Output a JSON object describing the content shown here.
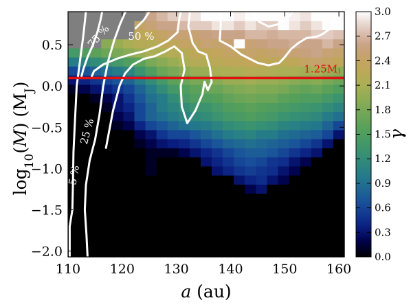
{
  "chart_data": {
    "type": "heatmap",
    "title": "",
    "xlabel": "a (au)",
    "ylabel": "log10(M) (MJ)",
    "xlim": [
      110,
      161
    ],
    "ylim": [
      -2.07,
      0.9
    ],
    "xticks": [
      110,
      120,
      130,
      140,
      150,
      160
    ],
    "yticks": [
      -2.0,
      -1.5,
      -1.0,
      -0.5,
      0.0,
      0.5
    ],
    "ytick_labels": [
      "−2.0",
      "−1.5",
      "−1.0",
      "−0.5",
      "0.0",
      "0.5"
    ],
    "colorbar": {
      "label": "γ",
      "range": [
        0.0,
        3.0
      ],
      "ticks": [
        0.0,
        0.3,
        0.6,
        0.9,
        1.2,
        1.5,
        1.8,
        2.1,
        2.4,
        2.7,
        3.0
      ],
      "colormap": "gist_earth"
    },
    "grid": {
      "x_start": 110,
      "x_step": 2.04,
      "n_cols": 25,
      "y_start": -2.07,
      "y_step": 0.11,
      "n_rows": 27,
      "row_order": "bottom_to_top",
      "no_data_value": null,
      "values": [
        [
          0,
          0,
          0,
          0,
          0,
          0,
          0,
          0,
          0,
          0,
          0,
          0,
          0,
          0,
          0,
          0,
          0,
          0,
          0,
          0,
          0,
          0,
          0,
          0,
          0
        ],
        [
          0,
          0,
          0,
          0,
          0,
          0,
          0,
          0,
          0,
          0,
          0,
          0,
          0,
          0,
          0,
          0,
          0,
          0,
          0,
          0,
          0,
          0,
          0,
          0,
          0
        ],
        [
          0,
          0,
          0,
          0,
          0,
          0,
          0,
          0,
          0,
          0,
          0,
          0,
          0,
          0,
          0,
          0,
          0,
          0,
          0,
          0,
          0,
          0,
          0,
          0,
          0
        ],
        [
          0,
          0,
          0,
          0,
          0,
          0,
          0,
          0,
          0,
          0,
          0,
          0,
          0,
          0,
          0,
          0,
          0,
          0,
          0,
          0,
          0,
          0,
          0,
          0,
          0
        ],
        [
          0,
          0,
          0,
          0,
          0,
          0,
          0,
          0,
          0,
          0,
          0,
          0,
          0,
          0,
          0,
          0,
          0,
          0,
          0,
          0,
          0,
          0,
          0,
          0,
          0
        ],
        [
          0,
          0,
          0,
          0,
          0,
          0,
          0,
          0,
          0,
          0,
          0,
          0,
          0,
          0,
          0,
          0,
          0,
          0,
          0,
          0,
          0,
          0,
          0,
          0,
          0
        ],
        [
          0,
          0,
          0,
          0,
          0,
          0,
          0,
          0,
          0,
          0,
          0,
          0,
          0,
          0,
          0,
          0,
          0,
          0,
          0,
          0,
          0,
          0,
          0,
          0,
          0
        ],
        [
          0,
          0,
          0,
          0,
          0,
          0,
          0,
          0,
          0,
          0,
          0,
          0,
          0,
          0,
          0,
          0,
          0.2,
          0.3,
          0,
          0,
          0,
          0,
          0,
          0,
          0
        ],
        [
          0,
          0,
          0,
          0,
          0,
          0,
          0,
          0,
          0,
          0,
          0,
          0,
          0,
          0,
          0,
          0.3,
          0.4,
          0.45,
          0.3,
          0.2,
          0,
          0,
          0,
          0,
          0
        ],
        [
          0,
          0,
          0,
          0,
          0,
          0,
          0,
          0.1,
          0,
          0,
          0,
          0,
          0,
          0.3,
          0.4,
          0.5,
          0.55,
          0.5,
          0.45,
          0.3,
          0.2,
          0,
          0,
          0,
          0
        ],
        [
          0,
          0,
          0,
          0,
          0,
          0,
          0,
          0.1,
          0,
          0,
          0,
          0,
          0.3,
          0.4,
          0.5,
          0.6,
          0.65,
          0.6,
          0.5,
          0.45,
          0.3,
          0.2,
          0,
          0,
          0
        ],
        [
          0,
          0,
          0,
          0,
          0,
          0,
          0,
          0.1,
          0.1,
          0.1,
          0.2,
          0.3,
          0.4,
          0.5,
          0.6,
          0.7,
          0.75,
          0.75,
          0.7,
          0.6,
          0.5,
          0.4,
          0.3,
          0,
          0
        ],
        [
          0,
          0,
          0,
          0,
          0,
          0,
          0.1,
          0.2,
          0.3,
          0.35,
          0.4,
          0.5,
          0.6,
          0.7,
          0.8,
          0.85,
          0.9,
          0.85,
          0.8,
          0.75,
          0.7,
          0.6,
          0.5,
          0.3,
          0
        ],
        [
          0,
          0,
          0,
          0,
          0,
          0,
          0.2,
          0.3,
          0.5,
          0.6,
          0.6,
          0.7,
          0.8,
          0.9,
          1.0,
          1.05,
          1.1,
          1.0,
          1.0,
          0.9,
          0.85,
          0.8,
          0.75,
          0.6,
          0.3
        ],
        [
          0,
          0,
          0,
          0,
          0.1,
          0.2,
          0.4,
          0.6,
          0.7,
          0.8,
          0.9,
          0.95,
          1.0,
          1.1,
          1.2,
          1.25,
          1.3,
          1.25,
          1.2,
          1.1,
          1.05,
          1.0,
          0.95,
          0.8,
          0.6
        ],
        [
          0,
          0,
          0,
          0,
          0.2,
          0.3,
          0.6,
          0.8,
          0.9,
          1.0,
          1.1,
          1.15,
          1.2,
          1.3,
          1.4,
          1.45,
          1.5,
          1.45,
          1.4,
          1.3,
          1.25,
          1.2,
          1.15,
          1.0,
          0.9
        ],
        [
          0,
          0,
          0,
          0.1,
          0.3,
          0.4,
          0.6,
          0.8,
          1.0,
          1.1,
          1.2,
          1.3,
          1.3,
          1.4,
          1.5,
          1.55,
          1.6,
          1.55,
          1.5,
          1.45,
          1.4,
          1.35,
          1.3,
          1.2,
          1.1
        ],
        [
          0,
          0,
          0.1,
          0.2,
          0.3,
          0.5,
          0.7,
          0.9,
          1.0,
          1.2,
          1.4,
          1.5,
          1.5,
          1.55,
          1.65,
          1.7,
          1.75,
          1.7,
          1.7,
          1.6,
          1.55,
          1.5,
          1.5,
          1.4,
          1.3
        ],
        [
          0.1,
          0.2,
          0.3,
          0.4,
          0.5,
          0.6,
          0.8,
          1.0,
          1.2,
          1.4,
          1.5,
          1.6,
          1.7,
          1.7,
          1.8,
          1.85,
          1.9,
          1.85,
          1.85,
          1.8,
          1.7,
          1.65,
          1.7,
          1.6,
          1.5
        ],
        [
          0.3,
          0.4,
          0.5,
          0.6,
          0.7,
          0.8,
          1.0,
          1.2,
          1.4,
          1.6,
          1.7,
          1.8,
          1.8,
          1.9,
          2.0,
          2.0,
          2.05,
          2.0,
          2.0,
          1.95,
          1.9,
          1.85,
          1.9,
          1.8,
          1.7
        ],
        [
          0.6,
          0.7,
          0.8,
          0.9,
          1.0,
          1.1,
          1.3,
          1.5,
          1.7,
          1.8,
          1.9,
          2.0,
          2.0,
          2.1,
          2.1,
          2.15,
          2.2,
          2.2,
          2.15,
          2.1,
          2.1,
          2.05,
          2.1,
          2.0,
          1.95
        ],
        [
          1.0,
          1.1,
          1.2,
          1.3,
          1.4,
          1.5,
          1.6,
          1.8,
          1.9,
          2.0,
          2.1,
          2.2,
          2.2,
          2.25,
          2.3,
          2.3,
          2.35,
          2.3,
          2.3,
          2.25,
          2.3,
          2.4,
          2.45,
          2.4,
          2.3
        ],
        [
          1.4,
          1.5,
          1.6,
          1.7,
          1.8,
          1.9,
          2.0,
          2.1,
          2.1,
          2.2,
          2.2,
          2.3,
          2.3,
          2.35,
          2.4,
          2.4,
          2.45,
          2.4,
          2.45,
          2.5,
          2.5,
          2.55,
          2.6,
          2.5,
          2.45
        ],
        [
          null,
          null,
          null,
          1.9,
          2.0,
          2.1,
          2.2,
          2.2,
          2.3,
          2.3,
          2.4,
          2.4,
          2.5,
          2.45,
          2.5,
          3.0,
          2.5,
          2.55,
          2.6,
          2.6,
          2.65,
          2.6,
          2.6,
          2.7,
          2.6
        ],
        [
          null,
          null,
          null,
          null,
          null,
          null,
          2.3,
          2.3,
          2.4,
          2.5,
          2.5,
          2.5,
          2.55,
          2.6,
          2.6,
          2.6,
          2.7,
          2.7,
          2.65,
          2.7,
          2.7,
          2.7,
          2.8,
          2.8,
          2.75
        ],
        [
          null,
          null,
          null,
          null,
          null,
          null,
          2.4,
          2.5,
          2.6,
          2.6,
          2.7,
          2.8,
          2.8,
          2.9,
          2.9,
          2.8,
          2.9,
          2.8,
          2.8,
          3.0,
          2.9,
          2.8,
          2.9,
          3.0,
          3.0
        ],
        [
          null,
          null,
          null,
          null,
          null,
          null,
          null,
          2.6,
          2.7,
          2.8,
          2.85,
          2.9,
          3.0,
          3.0,
          3.0,
          2.95,
          3.0,
          3.0,
          3.0,
          3.0,
          2.95,
          2.9,
          3.0,
          3.0,
          3.0
        ]
      ]
    },
    "contours": [
      {
        "label": "5 %",
        "points": [
          [
            110.3,
            -2.07
          ],
          [
            110.3,
            -1.7
          ],
          [
            110.8,
            -1.5
          ],
          [
            110.9,
            -1.2
          ],
          [
            111.0,
            -0.8
          ],
          [
            111.3,
            -0.4
          ],
          [
            111.6,
            0.0
          ],
          [
            112.0,
            0.2
          ],
          [
            112.4,
            0.4
          ],
          [
            112.8,
            0.6
          ],
          [
            113.3,
            0.9
          ]
        ]
      },
      {
        "label": "5 %",
        "points": [
          [
            113.6,
            -2.07
          ],
          [
            113.4,
            -1.8
          ],
          [
            113.1,
            -1.5
          ],
          [
            113.3,
            -1.2
          ],
          [
            114.0,
            -0.9
          ],
          [
            115.0,
            -0.65
          ],
          [
            115.8,
            -0.35
          ],
          [
            116.5,
            0.0
          ],
          [
            117.4,
            0.3
          ],
          [
            118.5,
            0.55
          ],
          [
            119.6,
            0.75
          ],
          [
            120.6,
            0.9
          ]
        ]
      },
      {
        "label": "75 %",
        "points": [
          [
            116.3,
            0.9
          ],
          [
            116.0,
            0.8
          ],
          [
            115.4,
            0.65
          ],
          [
            114.6,
            0.5
          ],
          [
            113.6,
            0.35
          ],
          [
            112.8,
            0.2
          ],
          [
            112.5,
            0.12
          ]
        ]
      },
      {
        "label": "50 %",
        "points": [
          [
            130.8,
            0.9
          ],
          [
            130.5,
            0.8
          ],
          [
            130.2,
            0.65
          ],
          [
            128.5,
            0.55
          ],
          [
            126.5,
            0.48
          ],
          [
            124.0,
            0.42
          ],
          [
            121.5,
            0.38
          ],
          [
            119.0,
            0.33
          ],
          [
            116.5,
            0.26
          ],
          [
            114.8,
            0.18
          ],
          [
            114.4,
            0.12
          ]
        ]
      },
      {
        "label": "",
        "points": [
          [
            125.0,
            0.9
          ],
          [
            124.0,
            0.8
          ],
          [
            122.5,
            0.7
          ]
        ]
      },
      {
        "label": "",
        "points": [
          [
            132.5,
            0.9
          ],
          [
            132.2,
            0.72
          ],
          [
            133.0,
            0.52
          ],
          [
            134.0,
            0.42
          ],
          [
            135.5,
            0.38
          ],
          [
            136.2,
            0.22
          ],
          [
            136.5,
            0.05
          ],
          [
            135.8,
            -0.05
          ],
          [
            135.2,
            0.05
          ],
          [
            134.8,
            -0.1
          ],
          [
            133.5,
            -0.3
          ],
          [
            132.0,
            -0.45
          ],
          [
            131.0,
            -0.25
          ],
          [
            130.8,
            0.0
          ],
          [
            131.5,
            0.2
          ],
          [
            131.0,
            0.4
          ],
          [
            129.6,
            0.48
          ],
          [
            128.0,
            0.42
          ],
          [
            126.0,
            0.36
          ],
          [
            124.0,
            0.33
          ],
          [
            122.0,
            0.26
          ],
          [
            120.5,
            0.15
          ],
          [
            119.5,
            0.0
          ],
          [
            118.3,
            -0.3
          ],
          [
            117.0,
            -0.75
          ]
        ]
      },
      {
        "label": "",
        "points": [
          [
            138.0,
            0.9
          ],
          [
            138.2,
            0.75
          ],
          [
            138.0,
            0.55
          ],
          [
            140.0,
            0.48
          ],
          [
            142.0,
            0.38
          ],
          [
            145.0,
            0.28
          ],
          [
            147.0,
            0.25
          ],
          [
            149.0,
            0.28
          ],
          [
            150.0,
            0.35
          ],
          [
            151.2,
            0.45
          ],
          [
            152.5,
            0.52
          ],
          [
            154.0,
            0.58
          ],
          [
            156.0,
            0.6
          ],
          [
            157.0,
            0.63
          ],
          [
            158.5,
            0.7
          ],
          [
            159.5,
            0.85
          ]
        ]
      },
      {
        "label": "",
        "points": [
          [
            144.0,
            0.9
          ],
          [
            145.2,
            0.78
          ],
          [
            147.0,
            0.72
          ],
          [
            149.0,
            0.75
          ],
          [
            150.5,
            0.82
          ],
          [
            151.5,
            0.9
          ]
        ]
      }
    ],
    "hlines": [
      {
        "y": 0.0969,
        "label": "1.25Mⱼ",
        "color": "#e0100f"
      }
    ]
  }
}
